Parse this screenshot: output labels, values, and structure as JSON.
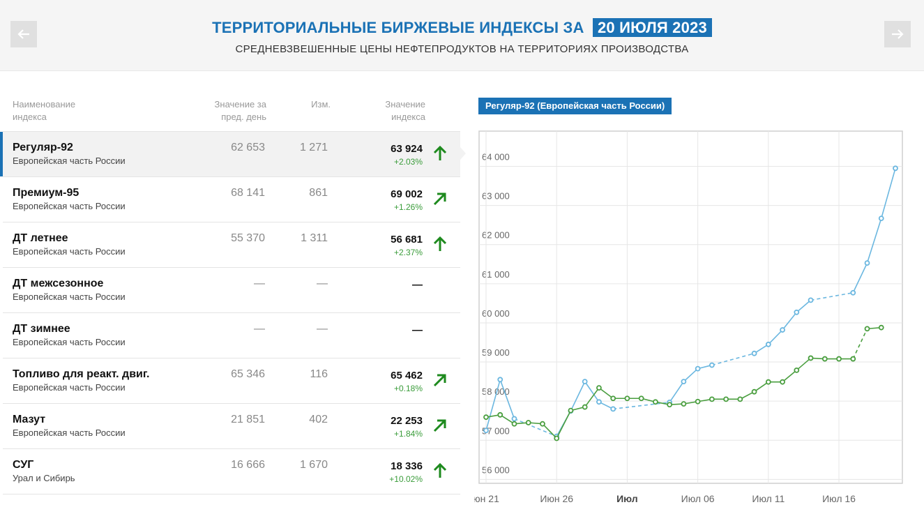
{
  "header": {
    "title": "ТЕРРИТОРИАЛЬНЫЕ БИРЖЕВЫЕ ИНДЕКСЫ ЗА",
    "date": "20 ИЮЛЯ 2023",
    "subtitle": "СРЕДНЕВЗВЕШЕННЫЕ ЦЕНЫ НЕФТЕПРОДУКТОВ НА ТЕРРИТОРИЯХ ПРОИЗВОДСТВА",
    "prev_icon": "arrow-left-icon",
    "next_icon": "arrow-right-icon"
  },
  "table": {
    "headers": {
      "name_1": "Наименование",
      "name_2": "индекса",
      "prev_1": "Значение за",
      "prev_2": "пред. день",
      "change": "Изм.",
      "value_1": "Значение",
      "value_2": "индекса"
    },
    "rows": [
      {
        "name": "Регуляр-92",
        "region": "Европейская часть России",
        "prev": "62 653",
        "change": "1 271",
        "value": "63 924",
        "pct": "+2.03%",
        "arrow": "up"
      },
      {
        "name": "Премиум-95",
        "region": "Европейская часть России",
        "prev": "68 141",
        "change": "861",
        "value": "69 002",
        "pct": "+1.26%",
        "arrow": "diag"
      },
      {
        "name": "ДТ летнее",
        "region": "Европейская часть России",
        "prev": "55 370",
        "change": "1 311",
        "value": "56 681",
        "pct": "+2.37%",
        "arrow": "up"
      },
      {
        "name": "ДТ межсезонное",
        "region": "Европейская часть России",
        "prev": "—",
        "change": "—",
        "value": "—",
        "pct": "",
        "arrow": "none"
      },
      {
        "name": "ДТ зимнее",
        "region": "Европейская часть России",
        "prev": "—",
        "change": "—",
        "value": "—",
        "pct": "",
        "arrow": "none"
      },
      {
        "name": "Топливо для реакт. двиг.",
        "region": "Европейская часть России",
        "prev": "65 346",
        "change": "116",
        "value": "65 462",
        "pct": "+0.18%",
        "arrow": "diag"
      },
      {
        "name": "Мазут",
        "region": "Европейская часть России",
        "prev": "21 851",
        "change": "402",
        "value": "22 253",
        "pct": "+1.84%",
        "arrow": "diag"
      },
      {
        "name": "СУГ",
        "region": "Урал и Сибирь",
        "prev": "16 666",
        "change": "1 670",
        "value": "18 336",
        "pct": "+10.02%",
        "arrow": "up"
      }
    ]
  },
  "chart_label": "Регуляр-92 (Европейская часть России)",
  "colors": {
    "accent": "#1b72b5",
    "series_blue": "#6bb7e0",
    "series_green": "#4a9e3f",
    "arrow_green": "#1e8a1e",
    "pct_green": "#3a9c3a"
  },
  "chart_data": {
    "type": "line",
    "x_ticks": [
      "юн 21",
      "Июн 26",
      "Июл",
      "Июл 06",
      "Июл 11",
      "Июл 16"
    ],
    "y_ticks": [
      "56 000",
      "57 000",
      "58 000",
      "59 000",
      "60 000",
      "61 000",
      "62 000",
      "63 000",
      "64 000"
    ],
    "ylim": [
      55900,
      64900
    ],
    "xlim": [
      "2023-06-21",
      "2023-07-20"
    ],
    "grid": true,
    "series": [
      {
        "color": "#6bb7e0",
        "points": [
          [
            "2023-06-21",
            57250
          ],
          [
            "2023-06-22",
            58550
          ],
          [
            "2023-06-23",
            57550
          ],
          [
            "2023-06-26",
            57100
          ],
          [
            "2023-06-27",
            57750
          ],
          [
            "2023-06-28",
            58500
          ],
          [
            "2023-06-29",
            57980
          ],
          [
            "2023-06-30",
            57800
          ],
          [
            "2023-07-04",
            57970
          ],
          [
            "2023-07-05",
            58500
          ],
          [
            "2023-07-06",
            58830
          ],
          [
            "2023-07-07",
            58920
          ],
          [
            "2023-07-10",
            59220
          ],
          [
            "2023-07-11",
            59450
          ],
          [
            "2023-07-12",
            59820
          ],
          [
            "2023-07-13",
            60270
          ],
          [
            "2023-07-14",
            60580
          ],
          [
            "2023-07-17",
            60770
          ],
          [
            "2023-07-18",
            61530
          ],
          [
            "2023-07-19",
            62670
          ],
          [
            "2023-07-20",
            63950
          ]
        ],
        "gaps_after": [
          "2023-06-23",
          "2023-06-30",
          "2023-07-07",
          "2023-07-14"
        ]
      },
      {
        "color": "#4a9e3f",
        "points": [
          [
            "2023-06-21",
            57590
          ],
          [
            "2023-06-22",
            57650
          ],
          [
            "2023-06-23",
            57420
          ],
          [
            "2023-06-24",
            57450
          ],
          [
            "2023-06-25",
            57420
          ],
          [
            "2023-06-26",
            57050
          ],
          [
            "2023-06-27",
            57760
          ],
          [
            "2023-06-28",
            57850
          ],
          [
            "2023-06-29",
            58340
          ],
          [
            "2023-06-30",
            58070
          ],
          [
            "2023-07-01",
            58070
          ],
          [
            "2023-07-02",
            58070
          ],
          [
            "2023-07-03",
            57980
          ],
          [
            "2023-07-04",
            57910
          ],
          [
            "2023-07-05",
            57930
          ],
          [
            "2023-07-06",
            57990
          ],
          [
            "2023-07-07",
            58050
          ],
          [
            "2023-07-08",
            58050
          ],
          [
            "2023-07-09",
            58050
          ],
          [
            "2023-07-10",
            58240
          ],
          [
            "2023-07-11",
            58490
          ],
          [
            "2023-07-12",
            58490
          ],
          [
            "2023-07-13",
            58790
          ],
          [
            "2023-07-14",
            59100
          ],
          [
            "2023-07-15",
            59080
          ],
          [
            "2023-07-16",
            59080
          ],
          [
            "2023-07-17",
            59080
          ],
          [
            "2023-07-18",
            59850
          ],
          [
            "2023-07-19",
            59880
          ]
        ],
        "gaps_after": [
          "2023-07-17"
        ]
      }
    ]
  }
}
